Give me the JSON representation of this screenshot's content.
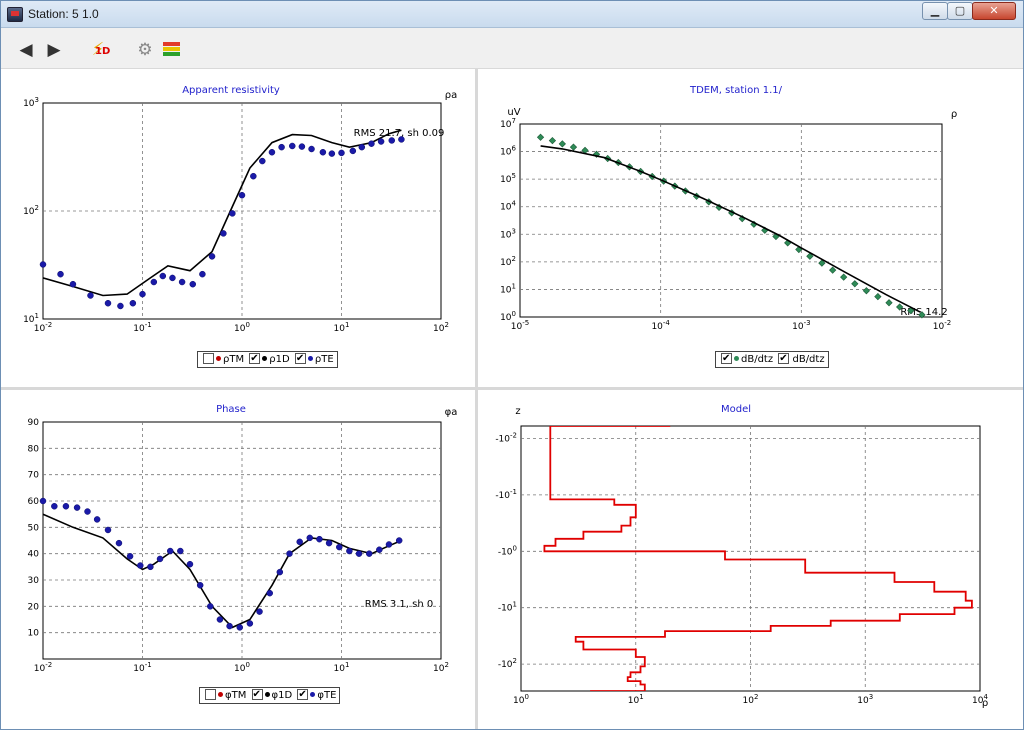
{
  "window": {
    "title": "Station: 5 1.0"
  },
  "toolbar": {
    "back": "back",
    "forward": "forward",
    "oned_badge": "1D",
    "settings": "settings",
    "layers": "layers"
  },
  "panels": {
    "resistivity": {
      "title": "Apparent resistivity",
      "corner_label": "ρa",
      "annotation": "RMS 21.7, sh 0.09",
      "legend": [
        {
          "label": "ρTM",
          "checked": false,
          "color": "#c00000"
        },
        {
          "label": "ρ1D",
          "checked": true,
          "color": "#000000"
        },
        {
          "label": "ρTE",
          "checked": true,
          "color": "#1a1aa8"
        }
      ]
    },
    "tdem": {
      "title": "TDEM, station 1.1/",
      "corner_label": "ρ",
      "y_unit": "uV",
      "annotation": "RMS 14.2",
      "legend": [
        {
          "label": "dB/dtz",
          "checked": true,
          "color": "#2e8b57"
        },
        {
          "label": "dB/dtz",
          "checked": true,
          "color": "#000000"
        }
      ]
    },
    "phase": {
      "title": "Phase",
      "corner_label": "φa",
      "annotation": "RMS 3.1, sh 0",
      "legend": [
        {
          "label": "φTM",
          "checked": false,
          "color": "#c00000"
        },
        {
          "label": "φ1D",
          "checked": true,
          "color": "#000000"
        },
        {
          "label": "φTE",
          "checked": true,
          "color": "#1a1aa8"
        }
      ]
    },
    "model": {
      "title": "Model",
      "y_label": "z",
      "x_label": "ρ"
    }
  },
  "chart_data": [
    {
      "type": "line",
      "panel": "resistivity",
      "title": "Apparent resistivity",
      "x_scale": "log",
      "y_scale": "log",
      "xlim": [
        0.01,
        100
      ],
      "ylim": [
        10,
        1000
      ],
      "x_ticks": [
        "10-2",
        "10-1",
        "100",
        "101",
        "102"
      ],
      "y_ticks": [
        "101",
        "102",
        "103"
      ],
      "grid": true,
      "series": [
        {
          "name": "ρ1D",
          "style": "line",
          "color": "#000000",
          "x": [
            0.01,
            0.02,
            0.04,
            0.07,
            0.12,
            0.18,
            0.3,
            0.5,
            0.8,
            1.2,
            2,
            3.2,
            5,
            8,
            12,
            20,
            30,
            40
          ],
          "y": [
            24,
            20,
            16.5,
            17,
            24,
            31,
            28,
            42,
            110,
            250,
            430,
            510,
            500,
            430,
            390,
            430,
            520,
            560
          ]
        },
        {
          "name": "ρTE",
          "style": "markers",
          "color": "#1a1aa8",
          "x": [
            0.01,
            0.015,
            0.02,
            0.03,
            0.045,
            0.06,
            0.08,
            0.1,
            0.13,
            0.16,
            0.2,
            0.25,
            0.32,
            0.4,
            0.5,
            0.65,
            0.8,
            1.0,
            1.3,
            1.6,
            2.0,
            2.5,
            3.2,
            4,
            5,
            6.5,
            8,
            10,
            13,
            16,
            20,
            25,
            32,
            40
          ],
          "y": [
            32,
            26,
            21,
            16.5,
            14,
            13.2,
            14,
            17,
            22,
            25,
            24,
            22,
            21,
            26,
            38,
            62,
            95,
            140,
            210,
            290,
            350,
            390,
            400,
            395,
            375,
            350,
            340,
            345,
            360,
            390,
            420,
            440,
            450,
            460
          ]
        }
      ]
    },
    {
      "type": "scatter",
      "panel": "tdem",
      "title": "TDEM, station 1.1/",
      "x_scale": "log",
      "y_scale": "log",
      "xlim": [
        1e-05,
        0.01
      ],
      "ylim": [
        1,
        10000000
      ],
      "x_ticks": [
        "10-5",
        "10-4",
        "10-3",
        "10-2"
      ],
      "y_ticks": [
        "100",
        "101",
        "102",
        "103",
        "104",
        "105",
        "106",
        "107"
      ],
      "ylabel": "uV",
      "grid": true,
      "series": [
        {
          "name": "dB/dtz",
          "style": "markers",
          "color": "#2e8b57",
          "x": [
            1.4e-05,
            1.7e-05,
            2e-05,
            2.4e-05,
            2.9e-05,
            3.5e-05,
            4.2e-05,
            5e-05,
            6e-05,
            7.2e-05,
            8.7e-05,
            0.000105,
            0.000126,
            0.00015,
            0.00018,
            0.00022,
            0.00026,
            0.00032,
            0.00038,
            0.00046,
            0.00055,
            0.00066,
            0.0008,
            0.00096,
            0.00115,
            0.0014,
            0.00167,
            0.002,
            0.0024,
            0.0029,
            0.0035,
            0.0042,
            0.005,
            0.006,
            0.0072
          ],
          "y": [
            3300000,
            2500000,
            1900000,
            1450000,
            1100000,
            800000,
            560000,
            400000,
            280000,
            190000,
            125000,
            85000,
            56000,
            37000,
            24000,
            15000,
            9500,
            6000,
            3700,
            2300,
            1400,
            830,
            490,
            280,
            160,
            90,
            50,
            28,
            16,
            9,
            5.5,
            3.3,
            2.3,
            1.7,
            1.2
          ]
        },
        {
          "name": "dB/dtz",
          "style": "line",
          "color": "#000000",
          "x": [
            1.4e-05,
            2e-05,
            4e-05,
            7e-05,
            0.0001,
            0.0002,
            0.0004,
            0.0007,
            0.001,
            0.002,
            0.004,
            0.007
          ],
          "y": [
            1600000,
            1250000,
            600000,
            200000,
            95000,
            20000,
            3800,
            900,
            320,
            45,
            6.5,
            1.5
          ]
        }
      ]
    },
    {
      "type": "line",
      "panel": "phase",
      "title": "Phase",
      "x_scale": "log",
      "xlim": [
        0.01,
        100
      ],
      "ylim": [
        0,
        90
      ],
      "x_ticks": [
        "10-2",
        "10-1",
        "100",
        "101",
        "102"
      ],
      "y_ticks": [
        "10",
        "20",
        "30",
        "40",
        "50",
        "60",
        "70",
        "80",
        "90"
      ],
      "grid": true,
      "series": [
        {
          "name": "φ1D",
          "style": "line",
          "color": "#000000",
          "x": [
            0.01,
            0.02,
            0.04,
            0.07,
            0.1,
            0.13,
            0.2,
            0.3,
            0.5,
            0.8,
            1.2,
            2,
            3,
            5,
            8,
            12,
            20,
            30,
            40
          ],
          "y": [
            55,
            50,
            46,
            38,
            34,
            36,
            41,
            34,
            20,
            12,
            15,
            28,
            40,
            46,
            45,
            42,
            40,
            43,
            45
          ]
        },
        {
          "name": "φTE",
          "style": "markers",
          "color": "#1a1aa8",
          "x": [
            0.01,
            0.013,
            0.017,
            0.022,
            0.028,
            0.035,
            0.045,
            0.058,
            0.075,
            0.095,
            0.12,
            0.15,
            0.19,
            0.24,
            0.3,
            0.38,
            0.48,
            0.6,
            0.75,
            0.95,
            1.2,
            1.5,
            1.9,
            2.4,
            3,
            3.8,
            4.8,
            6,
            7.5,
            9.5,
            12,
            15,
            19,
            24,
            30,
            38
          ],
          "y": [
            60,
            58,
            58,
            57.5,
            56,
            53,
            49,
            44,
            39,
            35.5,
            35,
            38,
            41,
            41,
            36,
            28,
            20,
            15,
            12.5,
            12,
            13.5,
            18,
            25,
            33,
            40,
            44.5,
            46,
            45.5,
            44,
            42.5,
            41,
            40,
            40,
            41.5,
            43.5,
            45
          ]
        }
      ]
    },
    {
      "type": "line",
      "panel": "model",
      "title": "Model",
      "x_scale": "log",
      "y_scale": "log",
      "xlim": [
        1,
        10000
      ],
      "ylim": [
        0.006,
        300
      ],
      "y_inverted": true,
      "x_ticks": [
        "100",
        "101",
        "102",
        "103",
        "104"
      ],
      "y_ticks": [
        "-10-2",
        "-10-1",
        "-100",
        "-101",
        "-102"
      ],
      "xlabel": "ρ",
      "ylabel": "z",
      "grid": true,
      "series": [
        {
          "name": "",
          "style": "step",
          "color": "#e00000",
          "points": [
            [
              20,
              0.006
            ],
            [
              1.8,
              0.006
            ],
            [
              1.8,
              0.12
            ],
            [
              6.5,
              0.12
            ],
            [
              6.5,
              0.15
            ],
            [
              10,
              0.15
            ],
            [
              10,
              0.25
            ],
            [
              9,
              0.25
            ],
            [
              9,
              0.35
            ],
            [
              7.5,
              0.35
            ],
            [
              7.5,
              0.45
            ],
            [
              3.5,
              0.45
            ],
            [
              3.5,
              0.6
            ],
            [
              2,
              0.6
            ],
            [
              2,
              0.8
            ],
            [
              1.6,
              0.8
            ],
            [
              1.6,
              1.0
            ],
            [
              60,
              1.0
            ],
            [
              60,
              1.4
            ],
            [
              300,
              1.4
            ],
            [
              300,
              2.4
            ],
            [
              1800,
              2.4
            ],
            [
              1800,
              3.5
            ],
            [
              4000,
              3.5
            ],
            [
              4000,
              5.2
            ],
            [
              7500,
              5.2
            ],
            [
              7500,
              7.5
            ],
            [
              8500,
              7.5
            ],
            [
              8500,
              10
            ],
            [
              6000,
              10
            ],
            [
              6000,
              13
            ],
            [
              2000,
              13
            ],
            [
              2000,
              17
            ],
            [
              500,
              17
            ],
            [
              500,
              21
            ],
            [
              150,
              21
            ],
            [
              150,
              26
            ],
            [
              18,
              26
            ],
            [
              18,
              33
            ],
            [
              3,
              33
            ],
            [
              3,
              40
            ],
            [
              3.5,
              40
            ],
            [
              3.5,
              55
            ],
            [
              10,
              55
            ],
            [
              10,
              75
            ],
            [
              12,
              75
            ],
            [
              12,
              110
            ],
            [
              11,
              110
            ],
            [
              11,
              140
            ],
            [
              9,
              140
            ],
            [
              9,
              170
            ],
            [
              8.5,
              170
            ],
            [
              8.5,
              200
            ],
            [
              11,
              200
            ],
            [
              11,
              230
            ],
            [
              12,
              230
            ],
            [
              12,
              300
            ],
            [
              4,
              300
            ]
          ]
        }
      ]
    }
  ]
}
